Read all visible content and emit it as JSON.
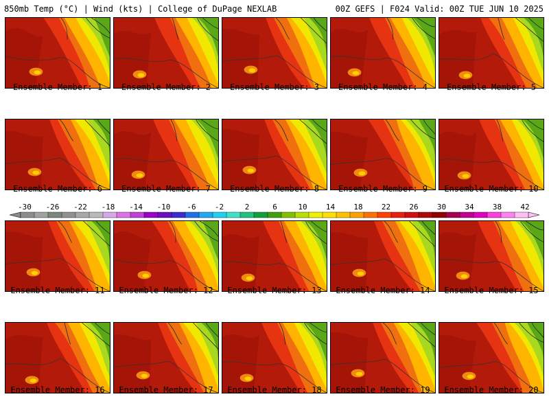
{
  "header": {
    "left": "850mb Temp (°C) | Wind (kts) | College of DuPage NEXLAB",
    "right": "00Z GEFS | F024 Valid: 00Z TUE JUN 10 2025"
  },
  "caption_prefix": "Ensemble Member:",
  "members": [
    {
      "label": "1"
    },
    {
      "label": "2"
    },
    {
      "label": "3"
    },
    {
      "label": "4"
    },
    {
      "label": "5"
    },
    {
      "label": "6"
    },
    {
      "label": "7"
    },
    {
      "label": "8"
    },
    {
      "label": "9"
    },
    {
      "label": "10"
    },
    {
      "label": "11"
    },
    {
      "label": "12"
    },
    {
      "label": "13"
    },
    {
      "label": "14"
    },
    {
      "label": "15"
    },
    {
      "label": "16"
    },
    {
      "label": "17"
    },
    {
      "label": "18"
    },
    {
      "label": "19"
    },
    {
      "label": "20"
    }
  ],
  "colorbar": {
    "labels": [
      "-30",
      "-26",
      "-22",
      "-18",
      "-14",
      "-10",
      "-6",
      "-2",
      "2",
      "6",
      "10",
      "14",
      "18",
      "22",
      "26",
      "30",
      "34",
      "38",
      "42"
    ],
    "colors": [
      "#8c8c8c",
      "#9fa39f",
      "#7b877b",
      "#909090",
      "#a8a8a8",
      "#b9b9b9",
      "#d6a8e6",
      "#e070e8",
      "#c040d8",
      "#9a00c8",
      "#6a10c0",
      "#3a2ad0",
      "#2070e8",
      "#20a8f0",
      "#20d0f0",
      "#40e0c8",
      "#20c080",
      "#10a040",
      "#40a010",
      "#80c000",
      "#b8e000",
      "#f0f000",
      "#ffe000",
      "#ffc000",
      "#ffa000",
      "#ff7000",
      "#ff4000",
      "#e82010",
      "#d01010",
      "#b00808",
      "#900000",
      "#a80050",
      "#c00090",
      "#e000c0",
      "#ff40e0",
      "#ff80f0",
      "#ffc0f8"
    ]
  }
}
